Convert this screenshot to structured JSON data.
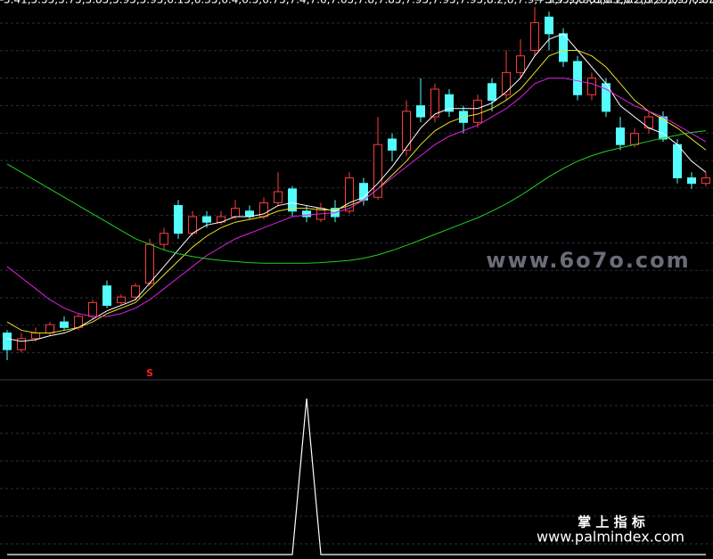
{
  "chart_data": {
    "type": "candlestick",
    "high": [
      5.95,
      5.9,
      6.0,
      6.1,
      6.2,
      6.25,
      6.5,
      6.85,
      6.6,
      6.8,
      7.6,
      7.8,
      8.3,
      8.1,
      8.1,
      8.1,
      8.3,
      8.2,
      8.35,
      8.8,
      8.55,
      8.2,
      8.25,
      8.3,
      8.8,
      8.7,
      9.8,
      9.5,
      10.1,
      10.5,
      10.4,
      10.3,
      10.0,
      10.2,
      10.5,
      11.0,
      11.2,
      11.78,
      11.7,
      11.4,
      10.9,
      10.6,
      10.5,
      9.8,
      9.6,
      9.9,
      9.9,
      9.4,
      8.8,
      8.8
    ],
    "low": [
      5.41,
      5.55,
      5.75,
      5.85,
      5.95,
      5.95,
      6.15,
      6.35,
      6.4,
      6.5,
      6.75,
      7.4,
      7.6,
      7.65,
      7.8,
      7.85,
      7.95,
      7.95,
      7.95,
      8.2,
      8.0,
      7.9,
      7.9,
      7.9,
      8.05,
      8.2,
      8.3,
      9.0,
      9.1,
      9.7,
      9.7,
      9.8,
      9.5,
      9.6,
      9.9,
      10.1,
      10.5,
      10.9,
      11.0,
      10.7,
      10.1,
      10.1,
      9.8,
      9.2,
      9.25,
      9.5,
      9.35,
      8.6,
      8.5,
      8.55
    ],
    "ylim": [
      5.41,
      11.78
    ],
    "open": [
      5.9,
      5.6,
      5.8,
      5.9,
      6.1,
      6.0,
      6.2,
      6.75,
      6.45,
      6.55,
      6.8,
      7.5,
      8.2,
      7.7,
      8.0,
      7.9,
      8.0,
      8.1,
      8.0,
      8.25,
      8.5,
      8.1,
      7.95,
      8.15,
      8.1,
      8.6,
      8.35,
      9.4,
      9.2,
      10.0,
      9.8,
      10.2,
      9.9,
      9.7,
      10.4,
      10.2,
      10.6,
      11.0,
      11.6,
      11.3,
      10.8,
      10.2,
      10.4,
      9.6,
      9.3,
      9.6,
      9.8,
      9.3,
      8.7,
      8.6
    ],
    "close": [
      5.6,
      5.8,
      5.9,
      6.05,
      6.0,
      6.2,
      6.45,
      6.4,
      6.55,
      6.75,
      7.5,
      7.7,
      7.7,
      8.0,
      7.9,
      8.0,
      8.15,
      8.0,
      8.25,
      8.45,
      8.1,
      8.0,
      8.15,
      8.0,
      8.7,
      8.3,
      9.3,
      9.2,
      9.9,
      9.8,
      10.3,
      9.9,
      9.7,
      10.1,
      10.1,
      10.6,
      10.9,
      11.5,
      11.3,
      10.8,
      10.2,
      10.5,
      9.9,
      9.3,
      9.5,
      9.8,
      9.4,
      8.7,
      8.6,
      8.7
    ],
    "series": [
      {
        "color": "#ffffff",
        "values": [
          5.8,
          5.75,
          5.78,
          5.85,
          5.9,
          6.0,
          6.15,
          6.3,
          6.4,
          6.5,
          6.8,
          7.1,
          7.4,
          7.7,
          7.85,
          7.9,
          8.0,
          8.0,
          8.05,
          8.2,
          8.25,
          8.2,
          8.15,
          8.1,
          8.25,
          8.35,
          8.6,
          8.9,
          9.25,
          9.6,
          9.85,
          9.95,
          9.95,
          9.95,
          10.05,
          10.25,
          10.5,
          10.9,
          11.2,
          11.3,
          11.0,
          10.7,
          10.4,
          10.0,
          9.8,
          9.6,
          9.5,
          9.3,
          9.0,
          8.8
        ]
      },
      {
        "color": "#e8e020",
        "values": [
          6.1,
          5.95,
          5.9,
          5.9,
          5.95,
          6.0,
          6.1,
          6.25,
          6.35,
          6.45,
          6.7,
          6.95,
          7.2,
          7.45,
          7.65,
          7.8,
          7.9,
          7.95,
          8.0,
          8.1,
          8.15,
          8.15,
          8.12,
          8.12,
          8.2,
          8.3,
          8.5,
          8.75,
          9.0,
          9.3,
          9.55,
          9.7,
          9.8,
          9.85,
          9.95,
          10.1,
          10.3,
          10.6,
          10.9,
          11.0,
          11.0,
          10.9,
          10.7,
          10.4,
          10.1,
          9.9,
          9.75,
          9.6,
          9.4,
          9.2
        ]
      },
      {
        "color": "#e020e0",
        "values": [
          7.1,
          6.9,
          6.7,
          6.5,
          6.35,
          6.25,
          6.2,
          6.2,
          6.25,
          6.35,
          6.5,
          6.7,
          6.9,
          7.1,
          7.3,
          7.45,
          7.6,
          7.7,
          7.8,
          7.9,
          8.0,
          8.03,
          8.05,
          8.07,
          8.15,
          8.3,
          8.5,
          8.7,
          8.9,
          9.1,
          9.3,
          9.45,
          9.55,
          9.65,
          9.8,
          9.95,
          10.15,
          10.4,
          10.5,
          10.5,
          10.45,
          10.4,
          10.3,
          10.15,
          10.0,
          9.9,
          9.8,
          9.65,
          9.5,
          9.35
        ]
      },
      {
        "color": "#20d020",
        "values": [
          8.95,
          8.8,
          8.65,
          8.5,
          8.35,
          8.2,
          8.05,
          7.9,
          7.75,
          7.6,
          7.5,
          7.4,
          7.33,
          7.28,
          7.24,
          7.21,
          7.19,
          7.17,
          7.16,
          7.16,
          7.16,
          7.16,
          7.17,
          7.19,
          7.21,
          7.25,
          7.31,
          7.39,
          7.48,
          7.58,
          7.68,
          7.78,
          7.88,
          7.98,
          8.1,
          8.23,
          8.38,
          8.55,
          8.72,
          8.87,
          9.0,
          9.1,
          9.18,
          9.24,
          9.3,
          9.36,
          9.42,
          9.47,
          9.52,
          9.55
        ]
      }
    ],
    "up_color": "#ff3c3c",
    "down_color": "#54fcfc",
    "signal_index": 10,
    "signal_label": "S",
    "indicator": {
      "color": "#ffffff",
      "ylim": [
        0,
        1
      ],
      "values": [
        0,
        0,
        0,
        0,
        0,
        0,
        0,
        0,
        0,
        0,
        0,
        0,
        0,
        0,
        0,
        0,
        0,
        0,
        0,
        0,
        0,
        1,
        0,
        0,
        0,
        0,
        0,
        0,
        0,
        0,
        0,
        0,
        0,
        0,
        0,
        0,
        0,
        0,
        0,
        0,
        0,
        0,
        0,
        0,
        0,
        0,
        0,
        0,
        0,
        0
      ]
    },
    "watermarks": [
      "www.6o7o.com",
      "掌 上 指 标",
      "www.palmindex.com"
    ]
  }
}
